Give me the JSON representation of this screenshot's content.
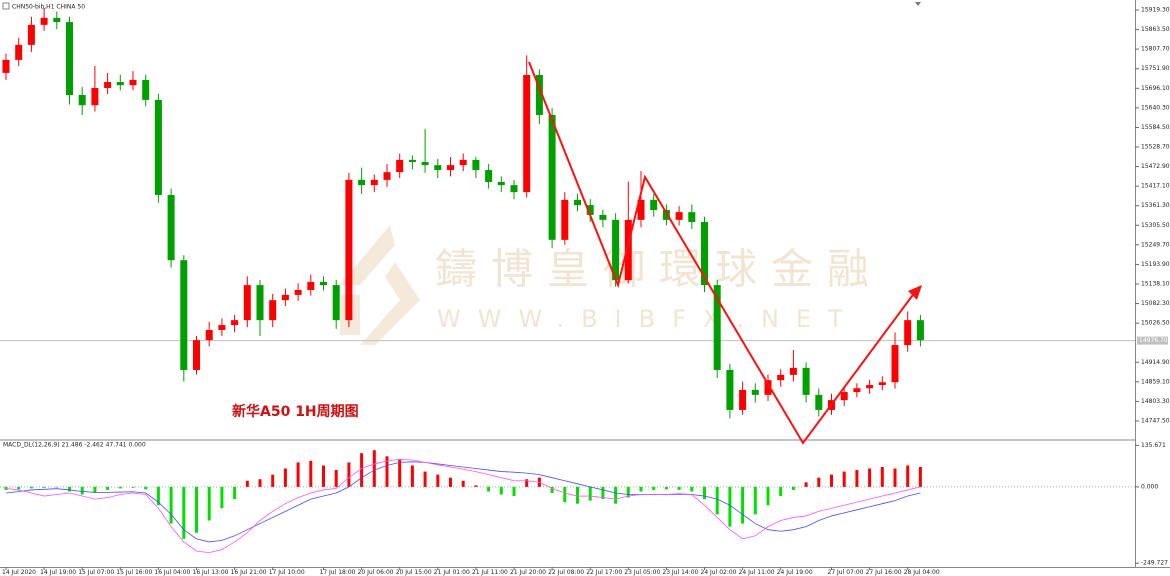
{
  "chart_data": [
    {
      "type": "candlestick",
      "title": "CHN50-bib,H1  CHINA 50",
      "annotation": "新华A50 1H周期图",
      "watermark": [
        "鑄博皇御環球金融",
        "WWW.BIBFX.NET"
      ],
      "categories": [
        "14 Jul 2020",
        null,
        null,
        "14 Jul 19:00",
        null,
        null,
        "15 Jul 07:00",
        null,
        null,
        "15 Jul 16:00",
        null,
        null,
        "16 Jul 04:00",
        null,
        null,
        "16 Jul 13:00",
        null,
        null,
        "16 Jul 21:00",
        null,
        null,
        "17 Jul 10:00",
        null,
        null,
        null,
        "17 Jul 18:00",
        null,
        null,
        "20 Jul 06:00",
        null,
        null,
        "20 Jul 15:00",
        null,
        null,
        "21 Jul 01:00",
        null,
        null,
        "21 Jul 11:00",
        null,
        null,
        "21 Jul 20:00",
        null,
        null,
        "22 Jul 08:00",
        null,
        null,
        "22 Jul 17:00",
        null,
        null,
        "23 Jul 05:00",
        null,
        null,
        "23 Jul 14:00",
        null,
        null,
        "24 Jul 02:00",
        null,
        null,
        "24 Jul 11:00",
        null,
        null,
        "24 Jul 19:00",
        null,
        null,
        null,
        "27 Jul 07:00",
        null,
        null,
        "27 Jul 16:00",
        null,
        null,
        "28 Jul 04:00",
        null
      ],
      "open": [
        15740,
        15777,
        15820,
        15877,
        15897,
        15885,
        15677,
        15648,
        15697,
        15714,
        15705,
        15720,
        15663,
        15392,
        15206,
        14893,
        14978,
        15007,
        15021,
        15035,
        15135,
        15035,
        15092,
        15107,
        15121,
        15144,
        15135,
        15035,
        15435,
        15420,
        15435,
        15457,
        15492,
        15486,
        15477,
        15463,
        15477,
        15492,
        15463,
        15429,
        15420,
        15400,
        15734,
        15620,
        15264,
        15378,
        15363,
        15335,
        15321,
        15149,
        15321,
        15378,
        15349,
        15321,
        15343,
        15315,
        15135,
        14893,
        14779,
        14836,
        14822,
        14864,
        14879,
        14899,
        14822,
        14779,
        14807,
        14830,
        14841,
        14850,
        14858,
        14964,
        15035
      ],
      "high": [
        15795,
        15840,
        15900,
        15925,
        15915,
        15900,
        15700,
        15760,
        15740,
        15735,
        15745,
        15735,
        15680,
        15410,
        15220,
        14990,
        15030,
        15040,
        15050,
        15160,
        15150,
        15110,
        15125,
        15140,
        15165,
        15160,
        15150,
        15455,
        15470,
        15450,
        15480,
        15510,
        15505,
        15580,
        15495,
        15500,
        15510,
        15500,
        15480,
        15445,
        15435,
        15790,
        15750,
        15640,
        15400,
        15395,
        15380,
        15350,
        15340,
        15430,
        15460,
        15395,
        15365,
        15360,
        15365,
        15330,
        15150,
        14910,
        14860,
        14855,
        14880,
        14895,
        14950,
        14915,
        14840,
        14825,
        14845,
        14855,
        14865,
        14875,
        15000,
        15060,
        15050
      ],
      "low": [
        15720,
        15760,
        15800,
        15860,
        15865,
        15650,
        15620,
        15630,
        15680,
        15690,
        15690,
        15645,
        15370,
        15185,
        14860,
        14880,
        14960,
        14990,
        15000,
        15015,
        14990,
        15015,
        15075,
        15090,
        15105,
        15120,
        15010,
        15015,
        15395,
        15400,
        15415,
        15440,
        15465,
        15455,
        15440,
        15445,
        15460,
        15440,
        15410,
        15400,
        15380,
        15385,
        15595,
        15240,
        15250,
        15345,
        15315,
        15300,
        15130,
        15140,
        15300,
        15330,
        15305,
        15305,
        15295,
        15115,
        14870,
        14755,
        14765,
        14800,
        14805,
        14845,
        14860,
        14800,
        14760,
        14765,
        14790,
        14815,
        14825,
        14835,
        14840,
        14945,
        14960
      ],
      "close": [
        15777,
        15820,
        15877,
        15897,
        15885,
        15677,
        15648,
        15697,
        15714,
        15705,
        15720,
        15663,
        15392,
        15206,
        14893,
        14978,
        15007,
        15021,
        15035,
        15135,
        15035,
        15092,
        15107,
        15121,
        15144,
        15135,
        15035,
        15435,
        15420,
        15435,
        15457,
        15492,
        15486,
        15477,
        15463,
        15477,
        15492,
        15463,
        15429,
        15420,
        15400,
        15734,
        15620,
        15264,
        15378,
        15363,
        15335,
        15321,
        15149,
        15321,
        15378,
        15349,
        15321,
        15343,
        15315,
        15135,
        14893,
        14779,
        14836,
        14822,
        14864,
        14879,
        14899,
        14822,
        14779,
        14807,
        14830,
        14841,
        14850,
        14858,
        14964,
        15035,
        14978
      ],
      "up_color": "#ff0000",
      "down_color": "#00a000",
      "ylim": [
        14693.3,
        15939.3
      ],
      "yticks": [
        {
          "value": 14747.5,
          "label": "14747.50"
        },
        {
          "value": 14803.3,
          "label": "14803.30"
        },
        {
          "value": 14859.1,
          "label": "14859.10"
        },
        {
          "value": 14914.9,
          "label": "14914.90"
        },
        {
          "value": 15026.5,
          "label": "15026.50"
        },
        {
          "value": 15082.3,
          "label": "15082.30"
        },
        {
          "value": 15138.1,
          "label": "15138.10"
        },
        {
          "value": 15193.9,
          "label": "15193.90"
        },
        {
          "value": 15249.7,
          "label": "15249.70"
        },
        {
          "value": 15305.5,
          "label": "15305.50"
        },
        {
          "value": 15361.3,
          "label": "15361.30"
        },
        {
          "value": 15417.1,
          "label": "15417.10"
        },
        {
          "value": 15472.9,
          "label": "15472.90"
        },
        {
          "value": 15528.7,
          "label": "15528.70"
        },
        {
          "value": 15584.5,
          "label": "15584.50"
        },
        {
          "value": 15640.3,
          "label": "15640.30"
        },
        {
          "value": 15696.1,
          "label": "15696.10"
        },
        {
          "value": 15751.9,
          "label": "15751.90"
        },
        {
          "value": 15807.7,
          "label": "15807.70"
        },
        {
          "value": 15863.5,
          "label": "15863.50"
        },
        {
          "value": 15919.3,
          "label": "15919.30"
        }
      ],
      "current_price": {
        "value": 14976.7,
        "label": "14976.70"
      }
    },
    {
      "type": "macd",
      "title": "MACD_DL(12,26,9) 21.486 -2.462 47.741 0.000",
      "histogram": [
        -10,
        -8,
        -5,
        -3,
        -2,
        -15,
        -25,
        -20,
        -10,
        -5,
        -3,
        -8,
        -60,
        -120,
        -170,
        -150,
        -110,
        -70,
        -40,
        20,
        25,
        40,
        60,
        80,
        85,
        70,
        55,
        80,
        110,
        120,
        100,
        90,
        70,
        50,
        40,
        30,
        20,
        5,
        -15,
        -25,
        -30,
        25,
        30,
        -20,
        -50,
        -55,
        -45,
        -40,
        -55,
        -35,
        -15,
        -10,
        -8,
        -10,
        -15,
        -40,
        -90,
        -130,
        -120,
        -90,
        -60,
        -30,
        -10,
        15,
        30,
        40,
        50,
        55,
        60,
        65,
        60,
        70,
        65
      ],
      "up_color": "#ff0000",
      "down_color": "#00e000",
      "series": [
        {
          "color": "#4a4aff",
          "values": [
            -20,
            -15,
            -10,
            -8,
            -6,
            -10,
            -15,
            -18,
            -18,
            -17,
            -16,
            -20,
            -50,
            -90,
            -140,
            -170,
            -180,
            -175,
            -160,
            -140,
            -120,
            -100,
            -80,
            -60,
            -40,
            -30,
            -20,
            0,
            30,
            55,
            70,
            80,
            82,
            80,
            75,
            70,
            65,
            60,
            55,
            50,
            48,
            45,
            40,
            30,
            20,
            10,
            0,
            -10,
            -20,
            -25,
            -25,
            -25,
            -25,
            -25,
            -25,
            -30,
            -40,
            -60,
            -90,
            -120,
            -140,
            -145,
            -140,
            -130,
            -110,
            -95,
            -85,
            -75,
            -65,
            -55,
            -45,
            -30,
            -20
          ]
        },
        {
          "color": "#ff50ff",
          "values": [
            -5,
            -10,
            -20,
            -30,
            -25,
            -20,
            -30,
            -40,
            -35,
            -25,
            -20,
            -25,
            -70,
            -130,
            -180,
            -210,
            -215,
            -205,
            -180,
            -150,
            -110,
            -80,
            -55,
            -35,
            -20,
            -10,
            -5,
            30,
            60,
            75,
            85,
            90,
            88,
            80,
            72,
            65,
            58,
            50,
            40,
            30,
            20,
            20,
            15,
            -5,
            -20,
            -30,
            -30,
            -35,
            -40,
            -30,
            -25,
            -25,
            -25,
            -22,
            -25,
            -60,
            -100,
            -140,
            -170,
            -160,
            -130,
            -110,
            -100,
            -95,
            -80,
            -70,
            -60,
            -50,
            -40,
            -30,
            -20,
            -10,
            0
          ]
        }
      ],
      "ylim": [
        -262,
        150
      ],
      "yticks": [
        -249.727,
        {
          "value": 0,
          "label": "0.000"
        },
        135.671
      ]
    }
  ]
}
